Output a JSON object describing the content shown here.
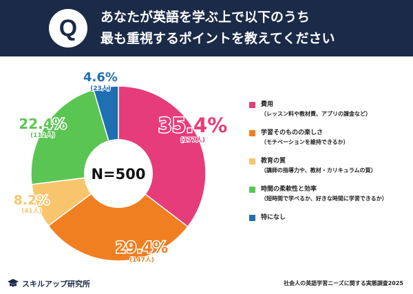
{
  "header": {
    "badge": "Q",
    "title_line1": "あなたが英語を学ぶ上で以下のうち",
    "title_line2": "最も重視するポイントを教えてください"
  },
  "colors": {
    "header_bg": "#1b2a47",
    "cost": "#e63d7a",
    "enjoy": "#f07f22",
    "quality": "#f9c56c",
    "flexibility": "#5bc553",
    "none": "#1f6fb3"
  },
  "chart_data": {
    "type": "pie",
    "title": "あなたが英語を学ぶ上で以下のうち最も重視するポイントを教えてください",
    "center_label": "N=500",
    "slices": [
      {
        "key": "cost",
        "percent": "35.4%",
        "count": "(177人)",
        "value": 35.4
      },
      {
        "key": "enjoy",
        "percent": "29.4%",
        "count": "(147人)",
        "value": 29.4
      },
      {
        "key": "quality",
        "percent": "8.2%",
        "count": "(41人)",
        "value": 8.2
      },
      {
        "key": "flexibility",
        "percent": "22.4%",
        "count": "(112人)",
        "value": 22.4
      },
      {
        "key": "none",
        "percent": "4.6%",
        "count": "(23人)",
        "value": 4.6
      }
    ]
  },
  "legend": [
    {
      "key": "cost",
      "label": "費用",
      "sub": "（レッスン料や教材費、アプリの課金など）"
    },
    {
      "key": "enjoy",
      "label": "学習そのものの楽しさ",
      "sub": "（モチベーションを維持できるか）"
    },
    {
      "key": "quality",
      "label": "教育の質",
      "sub": "（講師の指導力や、教材・カリキュラムの質）"
    },
    {
      "key": "flexibility",
      "label": "時間の柔軟性と効率",
      "sub": "（短時間で学べるか、好きな時間に学習できるか）"
    },
    {
      "key": "none",
      "label": "特になし",
      "sub": ""
    }
  ],
  "footer": {
    "brand": "スキルアップ研究所",
    "note": "社会人の英語学習ニーズに関する実態調査2025"
  }
}
